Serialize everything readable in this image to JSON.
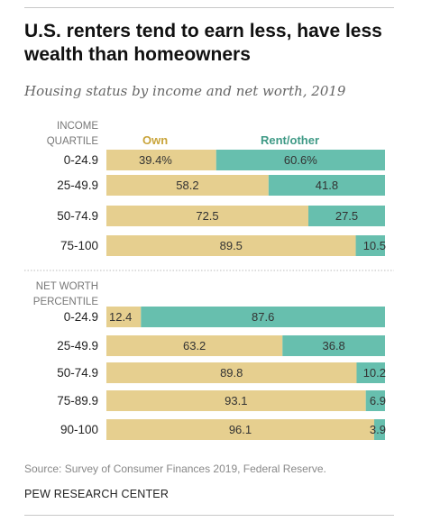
{
  "title": "U.S. renters tend to earn less, have less wealth than homeowners",
  "subtitle": "Housing status by income and net worth, 2019",
  "source": "Source: Survey of Consumer Finances 2019, Federal Reserve.",
  "credit": "PEW RESEARCH CENTER",
  "colors": {
    "own": "#e6cf8f",
    "rent": "#67bfae",
    "own_label": "#c9a43a",
    "rent_label": "#3f9a86"
  },
  "chart_data": {
    "type": "bar",
    "stacked": true,
    "orientation": "horizontal",
    "legend": [
      "Own",
      "Rent/other"
    ],
    "legend_position": "top",
    "xlim": [
      0,
      100
    ],
    "grid": false,
    "groups": [
      {
        "header": [
          "INCOME",
          "QUARTILE"
        ],
        "categories": [
          "0-24.9",
          "25-49.9",
          "50-74.9",
          "75-100"
        ],
        "series": [
          {
            "name": "Own",
            "values": [
              39.4,
              58.2,
              72.5,
              89.5
            ],
            "labels": [
              "39.4%",
              "58.2",
              "72.5",
              "89.5"
            ]
          },
          {
            "name": "Rent/other",
            "values": [
              60.6,
              41.8,
              27.5,
              10.5
            ],
            "labels": [
              "60.6%",
              "41.8",
              "27.5",
              "10.5"
            ]
          }
        ]
      },
      {
        "header": [
          "NET WORTH",
          "PERCENTILE"
        ],
        "categories": [
          "0-24.9",
          "25-49.9",
          "50-74.9",
          "75-89.9",
          "90-100"
        ],
        "series": [
          {
            "name": "Own",
            "values": [
              12.4,
              63.2,
              89.8,
              93.1,
              96.1
            ],
            "labels": [
              "12.4",
              "63.2",
              "89.8",
              "93.1",
              "96.1"
            ]
          },
          {
            "name": "Rent/other",
            "values": [
              87.6,
              36.8,
              10.2,
              6.9,
              3.9
            ],
            "labels": [
              "87.6",
              "36.8",
              "10.2",
              "6.9",
              "3.9"
            ]
          }
        ]
      }
    ]
  }
}
